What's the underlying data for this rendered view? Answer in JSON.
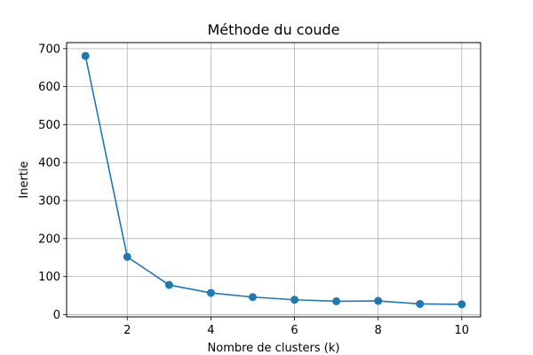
{
  "chart_data": {
    "type": "line",
    "title": "Méthode du coude",
    "xlabel": "Nombre de clusters (k)",
    "ylabel": "Inertie",
    "x": [
      1,
      2,
      3,
      4,
      5,
      6,
      7,
      8,
      9,
      10
    ],
    "series": [
      {
        "values": [
          681,
          152,
          78,
          57,
          46,
          39,
          35,
          36,
          28,
          27
        ],
        "color": "#1f77b4",
        "marker": "circle"
      }
    ],
    "xlim": [
      0.55,
      10.45
    ],
    "ylim": [
      -6,
      716
    ],
    "xticks": [
      2,
      4,
      6,
      8,
      10
    ],
    "yticks": [
      0,
      100,
      200,
      300,
      400,
      500,
      600,
      700
    ],
    "grid": true,
    "legend": "none"
  }
}
